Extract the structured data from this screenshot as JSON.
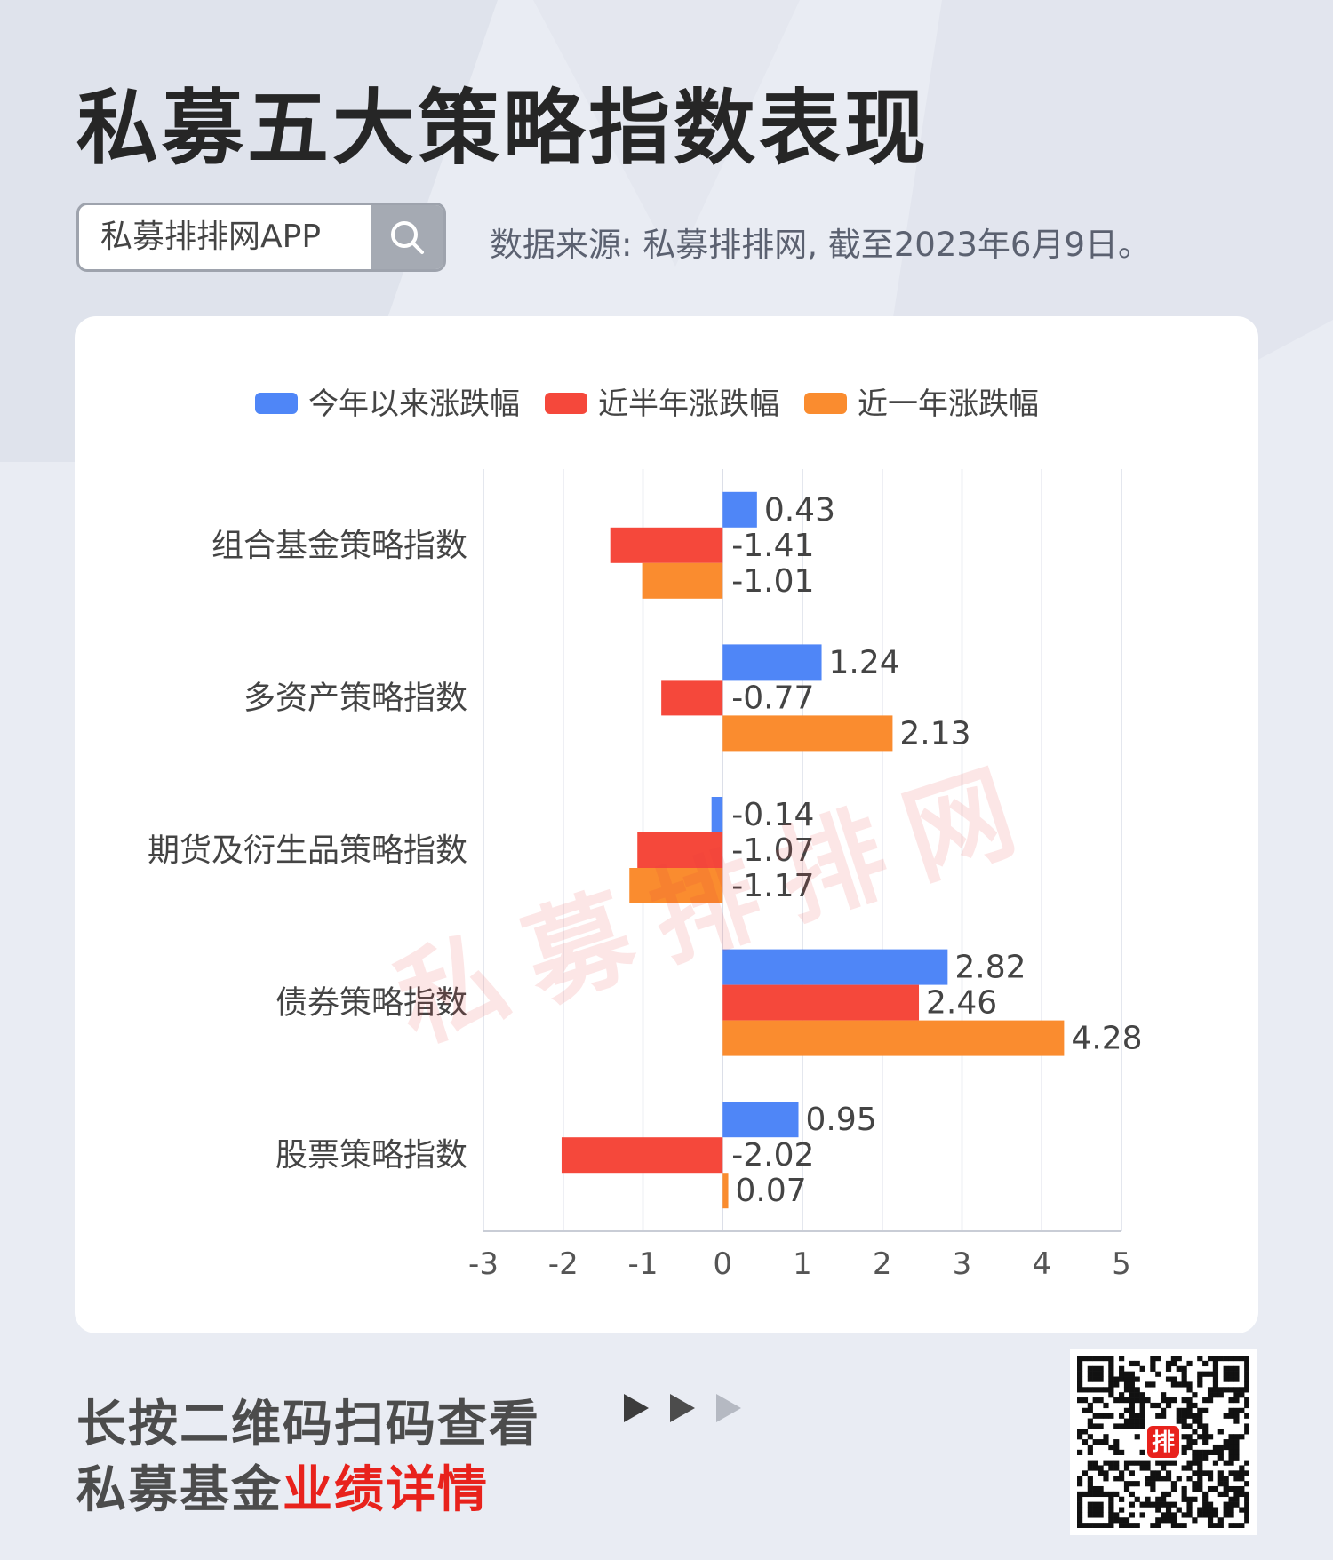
{
  "header": {
    "title": "私募五大策略指数表现",
    "search_label": "私募排排网APP",
    "source": "数据来源: 私募排排网, 截至2023年6月9日。"
  },
  "watermark": "私募排排网",
  "footer": {
    "line1": "长按二维码扫码查看",
    "line2_plain": "私募基金",
    "line2_highlight": "业绩详情",
    "qr_badge": "排"
  },
  "colors": {
    "accent": "#e8221c",
    "series": [
      "#4f86f7",
      "#f5483b",
      "#fa8c2f"
    ]
  },
  "chart_data": {
    "type": "bar",
    "orientation": "horizontal",
    "categories": [
      "组合基金策略指数",
      "多资产策略指数",
      "期货及衍生品策略指数",
      "债券策略指数",
      "股票策略指数"
    ],
    "series": [
      {
        "name": "今年以来涨跌幅",
        "values": [
          0.43,
          1.24,
          -0.14,
          2.82,
          0.95
        ]
      },
      {
        "name": "近半年涨跌幅",
        "values": [
          -1.41,
          -0.77,
          -1.07,
          2.46,
          -2.02
        ]
      },
      {
        "name": "近一年涨跌幅",
        "values": [
          -1.01,
          2.13,
          -1.17,
          4.28,
          0.07
        ]
      }
    ],
    "xlim": [
      -3,
      5
    ],
    "xticks": [
      -3,
      -2,
      -1,
      0,
      1,
      2,
      3,
      4,
      5
    ],
    "grid": true,
    "legend": "top-center",
    "data_labels": true
  }
}
